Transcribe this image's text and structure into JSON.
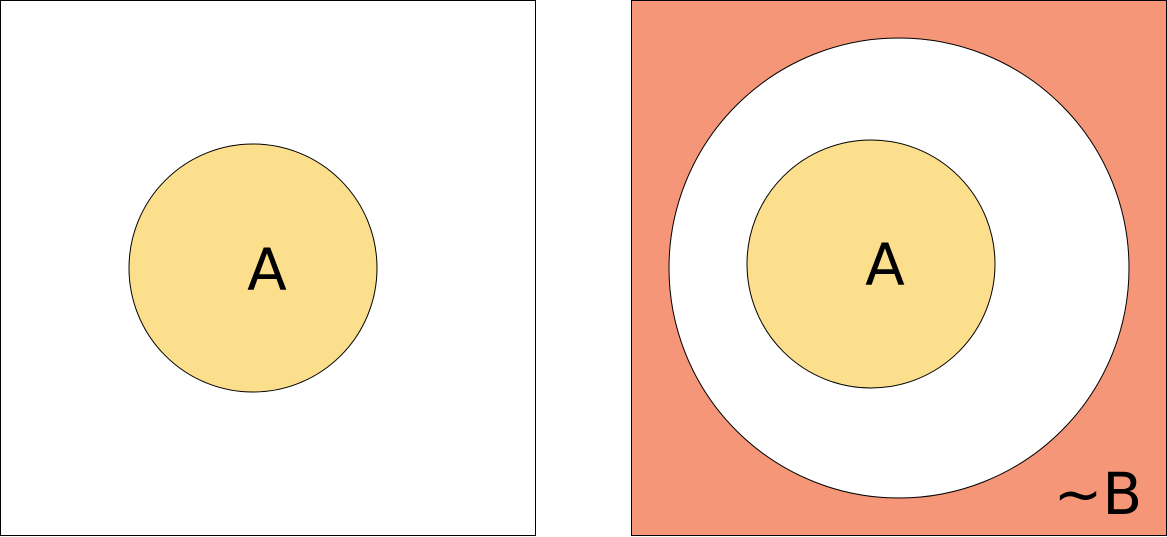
{
  "colors": {
    "set_a_fill": "#FCDF8D",
    "complement_b_fill": "#F59679",
    "background": "#FFFFFF",
    "stroke": "#000000"
  },
  "left_panel": {
    "set_a_label": "A"
  },
  "right_panel": {
    "set_a_label": "A",
    "complement_b_label": "~B"
  }
}
